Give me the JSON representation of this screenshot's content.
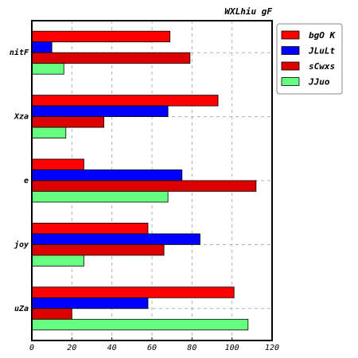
{
  "chart_data": {
    "type": "bar",
    "orientation": "horizontal",
    "title": "WXLhiu gF",
    "xlabel": "",
    "ylabel": "",
    "categories": [
      "nitF",
      "Xza",
      "e",
      "joy",
      "uZa"
    ],
    "series": [
      {
        "name": "bgO K",
        "color": "#ff0000",
        "values": [
          69,
          93,
          26,
          58,
          101
        ]
      },
      {
        "name": "JLuLt",
        "color": "#0000ff",
        "values": [
          10,
          68,
          75,
          84,
          58
        ]
      },
      {
        "name": "sCwxs",
        "color": "#dd0000",
        "values": [
          79,
          36,
          112,
          66,
          20
        ]
      },
      {
        "name": "JJuo",
        "color": "#66ff80",
        "values": [
          16,
          17,
          68,
          26,
          108
        ]
      }
    ],
    "xlim": [
      0,
      120
    ],
    "xticks": [
      "0",
      "20",
      "40",
      "60",
      "80",
      "100",
      "120"
    ],
    "grid": true,
    "legend_position": "top-right"
  }
}
